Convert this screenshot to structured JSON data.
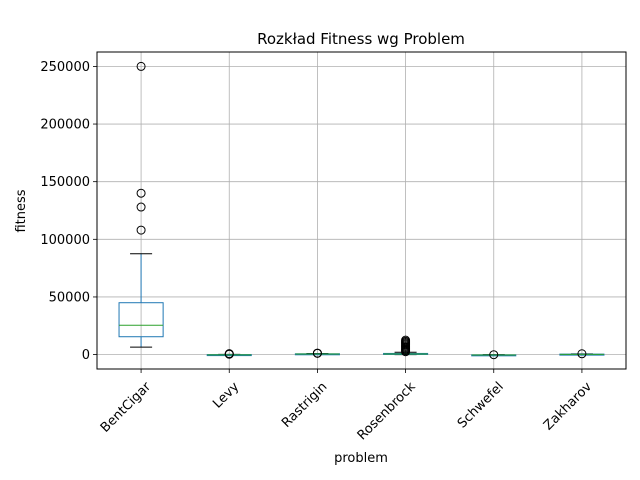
{
  "chart_data": {
    "type": "box",
    "title": "Rozkład Fitness wg Problem",
    "xlabel": "problem",
    "ylabel": "fitness",
    "ylim": [
      -12500,
      262500
    ],
    "yticks": [
      0,
      50000,
      100000,
      150000,
      200000,
      250000
    ],
    "ytick_labels": [
      "0",
      "50000",
      "100000",
      "150000",
      "200000",
      "250000"
    ],
    "grid": true,
    "colors": {
      "box": "#1f77b4",
      "median": "#2ca02c",
      "whisker": "#1f77b4",
      "cap": "#000000",
      "flier": "#000000",
      "grid": "#b0b0b0"
    },
    "categories": [
      "BentCigar",
      "Levy",
      "Rastrigin",
      "Rosenbrock",
      "Schwefel",
      "Zakharov"
    ],
    "boxes": [
      {
        "name": "BentCigar",
        "whislo": 6500,
        "q1": 15500,
        "med": 25500,
        "q3": 45000,
        "whishi": 87500,
        "fliers": [
          108000,
          128000,
          140000,
          250000
        ]
      },
      {
        "name": "Levy",
        "whislo": -700,
        "q1": -400,
        "med": -200,
        "q3": 0,
        "whishi": 200,
        "fliers": [
          300,
          500,
          800
        ]
      },
      {
        "name": "Rastrigin",
        "whislo": 100,
        "q1": 300,
        "med": 500,
        "q3": 700,
        "whishi": 900,
        "fliers": [
          1100,
          1300
        ]
      },
      {
        "name": "Rosenbrock",
        "whislo": 0,
        "q1": 200,
        "med": 500,
        "q3": 1000,
        "whishi": 2000,
        "fliers": [
          2500,
          3500,
          4500,
          5500,
          6500,
          7500,
          8500,
          9500,
          10500,
          11500,
          12500
        ]
      },
      {
        "name": "Schwefel",
        "whislo": -800,
        "q1": -600,
        "med": -400,
        "q3": -200,
        "whishi": 0,
        "fliers": [
          -100
        ]
      },
      {
        "name": "Zakharov",
        "whislo": -200,
        "q1": 0,
        "med": 200,
        "q3": 400,
        "whishi": 600,
        "fliers": [
          700
        ]
      }
    ]
  }
}
